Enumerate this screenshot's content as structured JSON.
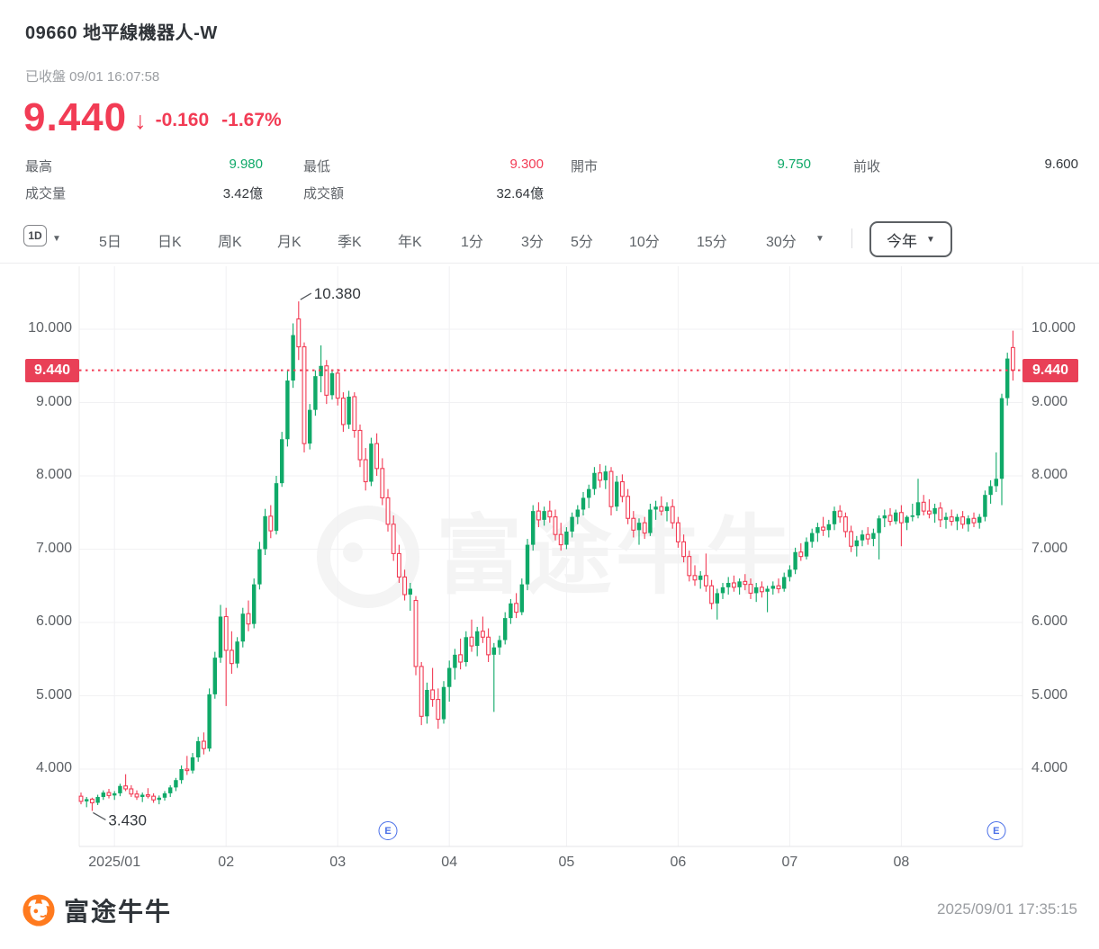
{
  "header": {
    "title": "09660  地平線機器人-W",
    "status": "已收盤 09/01 16:07:58",
    "price": "9.440",
    "arrow": "↓",
    "change": "-0.160",
    "change_pct": "-1.67%"
  },
  "stats": {
    "high_label": "最高",
    "high": "9.980",
    "low_label": "最低",
    "low": "9.300",
    "open_label": "開市",
    "open": "9.750",
    "prev_label": "前收",
    "prev": "9.600",
    "vol_label": "成交量",
    "vol": "3.42億",
    "amt_label": "成交額",
    "amt": "32.64億"
  },
  "toolbar": {
    "period_box": "1D",
    "items": [
      "5日",
      "日K",
      "周K",
      "月K",
      "季K",
      "年K",
      "1分",
      "3分",
      "5分",
      "10分",
      "15分",
      "30分"
    ],
    "range_button": "今年"
  },
  "colors": {
    "up": "#0fa968",
    "down": "#f23c55",
    "badge": "#e94057",
    "event_blue": "#4a6fe8",
    "brand_orange": "#ff7a1e",
    "grid": "#f1f1f3"
  },
  "chart_data": {
    "type": "candlestick",
    "title": "09660 地平線機器人-W 日K 今年",
    "ylim": [
      3.0,
      10.86
    ],
    "grid": true,
    "last_price": 9.44,
    "last_price_label": "9.440",
    "y_ticks": [
      {
        "v": 10,
        "label": "10.000"
      },
      {
        "v": 9,
        "label": "9.000"
      },
      {
        "v": 8,
        "label": "8.000"
      },
      {
        "v": 7,
        "label": "7.000"
      },
      {
        "v": 6,
        "label": "6.000"
      },
      {
        "v": 5,
        "label": "5.000"
      },
      {
        "v": 4,
        "label": "4.000"
      }
    ],
    "x_labels": [
      {
        "label": "2025/01",
        "index": 6
      },
      {
        "label": "02",
        "index": 26
      },
      {
        "label": "03",
        "index": 46
      },
      {
        "label": "04",
        "index": 66
      },
      {
        "label": "05",
        "index": 87
      },
      {
        "label": "06",
        "index": 107
      },
      {
        "label": "07",
        "index": 127
      },
      {
        "label": "08",
        "index": 147
      }
    ],
    "annotations": [
      {
        "text": "10.380",
        "index": 39,
        "at": "high"
      },
      {
        "text": "3.430",
        "index": 2,
        "at": "low"
      }
    ],
    "events": [
      {
        "label": "E",
        "index": 55
      },
      {
        "label": "E",
        "index": 164
      }
    ],
    "watermark": "富途牛牛",
    "candles": [
      [
        3.63,
        3.68,
        3.52,
        3.56
      ],
      [
        3.56,
        3.62,
        3.48,
        3.59
      ],
      [
        3.59,
        3.61,
        3.43,
        3.54
      ],
      [
        3.54,
        3.65,
        3.51,
        3.62
      ],
      [
        3.62,
        3.71,
        3.58,
        3.68
      ],
      [
        3.68,
        3.73,
        3.6,
        3.64
      ],
      [
        3.64,
        3.7,
        3.58,
        3.67
      ],
      [
        3.67,
        3.8,
        3.63,
        3.77
      ],
      [
        3.77,
        3.93,
        3.7,
        3.73
      ],
      [
        3.73,
        3.78,
        3.62,
        3.66
      ],
      [
        3.66,
        3.71,
        3.58,
        3.62
      ],
      [
        3.62,
        3.68,
        3.55,
        3.65
      ],
      [
        3.65,
        3.74,
        3.6,
        3.63
      ],
      [
        3.63,
        3.67,
        3.54,
        3.58
      ],
      [
        3.58,
        3.64,
        3.52,
        3.61
      ],
      [
        3.61,
        3.7,
        3.57,
        3.67
      ],
      [
        3.67,
        3.78,
        3.62,
        3.75
      ],
      [
        3.75,
        3.88,
        3.7,
        3.85
      ],
      [
        3.85,
        4.05,
        3.8,
        4.0
      ],
      [
        4.0,
        4.18,
        3.92,
        3.98
      ],
      [
        3.98,
        4.22,
        3.94,
        4.16
      ],
      [
        4.16,
        4.44,
        4.1,
        4.38
      ],
      [
        4.38,
        4.5,
        4.2,
        4.28
      ],
      [
        4.28,
        5.1,
        4.24,
        5.02
      ],
      [
        5.02,
        5.6,
        4.96,
        5.52
      ],
      [
        5.52,
        6.24,
        5.45,
        6.08
      ],
      [
        6.08,
        6.2,
        4.86,
        5.62
      ],
      [
        5.62,
        5.88,
        5.3,
        5.44
      ],
      [
        5.44,
        5.8,
        5.38,
        5.74
      ],
      [
        5.74,
        6.2,
        5.66,
        6.12
      ],
      [
        6.12,
        6.3,
        5.88,
        5.98
      ],
      [
        5.98,
        6.6,
        5.92,
        6.52
      ],
      [
        6.52,
        7.1,
        6.45,
        7.0
      ],
      [
        7.0,
        7.55,
        6.92,
        7.45
      ],
      [
        7.45,
        7.6,
        7.15,
        7.25
      ],
      [
        7.25,
        8.0,
        7.2,
        7.9
      ],
      [
        7.9,
        8.6,
        7.85,
        8.5
      ],
      [
        8.5,
        9.44,
        8.4,
        9.3
      ],
      [
        9.3,
        10.08,
        9.2,
        9.92
      ],
      [
        10.14,
        10.38,
        9.58,
        9.76
      ],
      [
        9.76,
        9.82,
        8.32,
        8.44
      ],
      [
        8.44,
        8.98,
        8.36,
        8.9
      ],
      [
        8.9,
        9.44,
        8.82,
        9.36
      ],
      [
        9.36,
        9.78,
        9.14,
        9.5
      ],
      [
        9.5,
        9.58,
        8.98,
        9.1
      ],
      [
        9.1,
        9.45,
        9.04,
        9.4
      ],
      [
        9.4,
        9.46,
        8.96,
        9.06
      ],
      [
        9.06,
        9.14,
        8.6,
        8.7
      ],
      [
        8.7,
        9.16,
        8.64,
        9.08
      ],
      [
        9.08,
        9.14,
        8.52,
        8.62
      ],
      [
        8.62,
        8.7,
        8.12,
        8.22
      ],
      [
        8.22,
        8.38,
        7.8,
        7.92
      ],
      [
        7.92,
        8.52,
        7.86,
        8.44
      ],
      [
        8.44,
        8.58,
        8.0,
        8.1
      ],
      [
        8.1,
        8.24,
        7.6,
        7.7
      ],
      [
        7.7,
        7.82,
        7.24,
        7.34
      ],
      [
        7.34,
        7.46,
        6.84,
        6.94
      ],
      [
        6.94,
        7.06,
        6.54,
        6.62
      ],
      [
        6.62,
        6.72,
        6.3,
        6.38
      ],
      [
        6.38,
        6.54,
        6.16,
        6.46
      ],
      [
        6.3,
        6.36,
        5.28,
        5.4
      ],
      [
        5.4,
        5.46,
        4.6,
        4.72
      ],
      [
        4.72,
        5.18,
        4.62,
        5.08
      ],
      [
        5.08,
        5.38,
        4.85,
        4.95
      ],
      [
        4.95,
        5.1,
        4.55,
        4.68
      ],
      [
        4.68,
        5.2,
        4.62,
        5.12
      ],
      [
        5.12,
        5.48,
        4.92,
        5.38
      ],
      [
        5.38,
        5.64,
        5.22,
        5.56
      ],
      [
        5.56,
        5.78,
        5.36,
        5.46
      ],
      [
        5.46,
        5.88,
        5.4,
        5.8
      ],
      [
        5.8,
        6.04,
        5.6,
        5.68
      ],
      [
        5.68,
        5.94,
        5.54,
        5.88
      ],
      [
        5.88,
        6.08,
        5.72,
        5.8
      ],
      [
        5.8,
        5.92,
        5.46,
        5.56
      ],
      [
        5.56,
        5.72,
        4.78,
        5.66
      ],
      [
        5.66,
        5.82,
        5.56,
        5.76
      ],
      [
        5.76,
        6.14,
        5.7,
        6.06
      ],
      [
        6.06,
        6.32,
        5.98,
        6.26
      ],
      [
        6.26,
        6.4,
        6.06,
        6.14
      ],
      [
        6.14,
        6.6,
        6.1,
        6.52
      ],
      [
        6.52,
        7.14,
        6.44,
        7.06
      ],
      [
        7.06,
        7.6,
        6.98,
        7.52
      ],
      [
        7.52,
        7.64,
        7.3,
        7.4
      ],
      [
        7.4,
        7.58,
        7.32,
        7.52
      ],
      [
        7.52,
        7.66,
        7.36,
        7.44
      ],
      [
        7.44,
        7.54,
        7.12,
        7.2
      ],
      [
        7.2,
        7.36,
        6.98,
        7.06
      ],
      [
        7.06,
        7.3,
        7.0,
        7.24
      ],
      [
        7.24,
        7.5,
        7.16,
        7.44
      ],
      [
        7.44,
        7.6,
        7.34,
        7.54
      ],
      [
        7.54,
        7.78,
        7.46,
        7.7
      ],
      [
        7.7,
        7.88,
        7.56,
        7.82
      ],
      [
        7.82,
        8.12,
        7.74,
        8.04
      ],
      [
        8.04,
        8.16,
        7.84,
        7.94
      ],
      [
        7.94,
        8.14,
        7.82,
        8.06
      ],
      [
        8.06,
        8.12,
        7.46,
        7.58
      ],
      [
        7.58,
        8.0,
        7.52,
        7.92
      ],
      [
        7.92,
        8.02,
        7.64,
        7.72
      ],
      [
        7.72,
        7.82,
        7.34,
        7.42
      ],
      [
        7.42,
        7.52,
        7.16,
        7.26
      ],
      [
        7.26,
        7.42,
        7.06,
        7.36
      ],
      [
        7.36,
        7.44,
        7.14,
        7.22
      ],
      [
        7.22,
        7.62,
        7.18,
        7.54
      ],
      [
        7.54,
        7.66,
        7.4,
        7.58
      ],
      [
        7.58,
        7.72,
        7.46,
        7.52
      ],
      [
        7.52,
        7.64,
        7.38,
        7.58
      ],
      [
        7.58,
        7.68,
        7.28,
        7.36
      ],
      [
        7.36,
        7.44,
        7.02,
        7.1
      ],
      [
        7.1,
        7.2,
        6.82,
        6.9
      ],
      [
        6.9,
        6.98,
        6.56,
        6.64
      ],
      [
        6.64,
        6.78,
        6.5,
        6.58
      ],
      [
        6.58,
        6.7,
        6.46,
        6.64
      ],
      [
        6.64,
        6.94,
        6.42,
        6.5
      ],
      [
        6.5,
        6.58,
        6.18,
        6.26
      ],
      [
        6.26,
        6.46,
        6.04,
        6.4
      ],
      [
        6.4,
        6.54,
        6.32,
        6.48
      ],
      [
        6.48,
        6.62,
        6.38,
        6.54
      ],
      [
        6.54,
        6.64,
        6.42,
        6.48
      ],
      [
        6.48,
        6.6,
        6.38,
        6.56
      ],
      [
        6.56,
        6.66,
        6.44,
        6.52
      ],
      [
        6.52,
        6.6,
        6.32,
        6.4
      ],
      [
        6.4,
        6.54,
        6.28,
        6.48
      ],
      [
        6.48,
        6.56,
        6.34,
        6.42
      ],
      [
        6.42,
        6.5,
        6.14,
        6.46
      ],
      [
        6.46,
        6.56,
        6.38,
        6.5
      ],
      [
        6.5,
        6.6,
        6.4,
        6.46
      ],
      [
        6.46,
        6.68,
        6.42,
        6.62
      ],
      [
        6.62,
        6.78,
        6.56,
        6.72
      ],
      [
        6.72,
        7.02,
        6.66,
        6.96
      ],
      [
        6.96,
        7.08,
        6.84,
        6.9
      ],
      [
        6.9,
        7.16,
        6.86,
        7.1
      ],
      [
        7.1,
        7.28,
        7.02,
        7.22
      ],
      [
        7.22,
        7.36,
        7.1,
        7.3
      ],
      [
        7.3,
        7.44,
        7.18,
        7.26
      ],
      [
        7.26,
        7.4,
        7.16,
        7.34
      ],
      [
        7.34,
        7.58,
        7.26,
        7.52
      ],
      [
        7.52,
        7.6,
        7.36,
        7.44
      ],
      [
        7.44,
        7.5,
        7.16,
        7.24
      ],
      [
        7.24,
        7.32,
        6.96,
        7.04
      ],
      [
        7.04,
        7.18,
        6.9,
        7.12
      ],
      [
        7.12,
        7.26,
        7.04,
        7.2
      ],
      [
        7.2,
        7.3,
        7.06,
        7.14
      ],
      [
        7.14,
        7.28,
        7.04,
        7.22
      ],
      [
        7.22,
        7.46,
        6.86,
        7.42
      ],
      [
        7.42,
        7.54,
        7.3,
        7.46
      ],
      [
        7.46,
        7.56,
        7.32,
        7.38
      ],
      [
        7.38,
        7.54,
        7.34,
        7.5
      ],
      [
        7.5,
        7.6,
        7.04,
        7.36
      ],
      [
        7.36,
        7.46,
        7.26,
        7.44
      ],
      [
        7.44,
        7.62,
        7.38,
        7.46
      ],
      [
        7.46,
        7.96,
        7.42,
        7.64
      ],
      [
        7.64,
        7.74,
        7.46,
        7.52
      ],
      [
        7.52,
        7.68,
        7.42,
        7.48
      ],
      [
        7.48,
        7.62,
        7.36,
        7.56
      ],
      [
        7.56,
        7.64,
        7.3,
        7.4
      ],
      [
        7.4,
        7.5,
        7.28,
        7.44
      ],
      [
        7.44,
        7.54,
        7.32,
        7.38
      ],
      [
        7.38,
        7.48,
        7.26,
        7.44
      ],
      [
        7.44,
        7.52,
        7.28,
        7.34
      ],
      [
        7.34,
        7.46,
        7.24,
        7.42
      ],
      [
        7.42,
        7.5,
        7.3,
        7.36
      ],
      [
        7.36,
        7.48,
        7.28,
        7.44
      ],
      [
        7.44,
        7.8,
        7.38,
        7.74
      ],
      [
        7.74,
        7.94,
        7.62,
        7.86
      ],
      [
        7.86,
        8.32,
        7.78,
        7.96
      ],
      [
        7.96,
        9.12,
        7.6,
        9.06
      ],
      [
        9.06,
        9.68,
        8.96,
        9.6
      ],
      [
        9.75,
        9.98,
        9.3,
        9.44
      ]
    ]
  },
  "footer": {
    "brand": "富途牛牛",
    "timestamp": "2025/09/01 17:35:15"
  }
}
